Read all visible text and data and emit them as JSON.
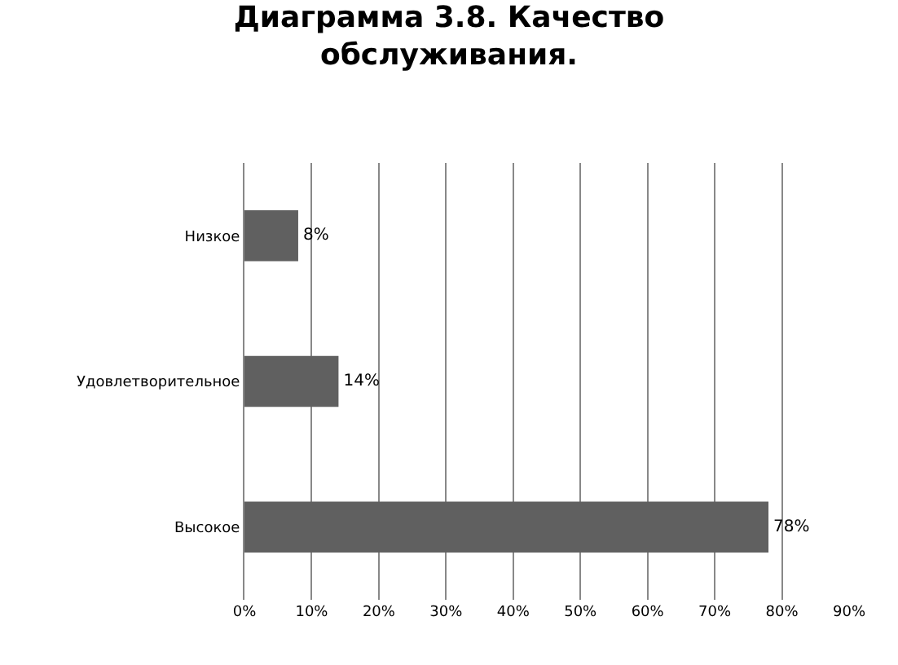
{
  "chart_data": {
    "type": "bar",
    "orientation": "horizontal",
    "title": "Диаграмма 3.8. Качество\nобслуживания.",
    "categories": [
      "Низкое",
      "Удовлетворительное",
      "Высокое"
    ],
    "values": [
      8,
      14,
      78
    ],
    "value_labels": [
      "8%",
      "14%",
      "78%"
    ],
    "color": "#606060",
    "xlim": [
      0,
      90
    ],
    "xticks": [
      {
        "value": 0,
        "label": "0%"
      },
      {
        "value": 10,
        "label": "10%"
      },
      {
        "value": 20,
        "label": "20%"
      },
      {
        "value": 30,
        "label": "30%"
      },
      {
        "value": 40,
        "label": "40%"
      },
      {
        "value": 50,
        "label": "50%"
      },
      {
        "value": 60,
        "label": "60%"
      },
      {
        "value": 70,
        "label": "70%"
      },
      {
        "value": 80,
        "label": "80%"
      },
      {
        "value": 90,
        "label": "90%"
      }
    ],
    "grid": "x",
    "legend": false
  }
}
